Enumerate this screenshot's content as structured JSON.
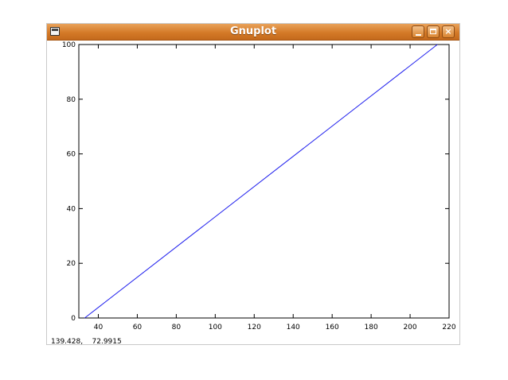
{
  "window": {
    "title": "Gnuplot",
    "icons": {
      "window": "window-menu-icon",
      "minimize": "minimize-icon",
      "maximize": "maximize-icon",
      "close": "close-icon"
    },
    "close_glyph": "×"
  },
  "status_readout": "139.428,    72.9915",
  "colors": {
    "titlebar": "#d47a28",
    "series": "#2222ee"
  },
  "chart_data": {
    "type": "line",
    "title": "",
    "xlabel": "",
    "ylabel": "",
    "xlim": [
      30,
      220
    ],
    "ylim": [
      0,
      100
    ],
    "x_ticks": [
      40,
      60,
      80,
      100,
      120,
      140,
      160,
      180,
      200,
      220
    ],
    "y_ticks": [
      0,
      20,
      40,
      60,
      80,
      100
    ],
    "grid": false,
    "series": [
      {
        "x": [
          33,
          214
        ],
        "y": [
          0,
          100
        ]
      }
    ]
  }
}
